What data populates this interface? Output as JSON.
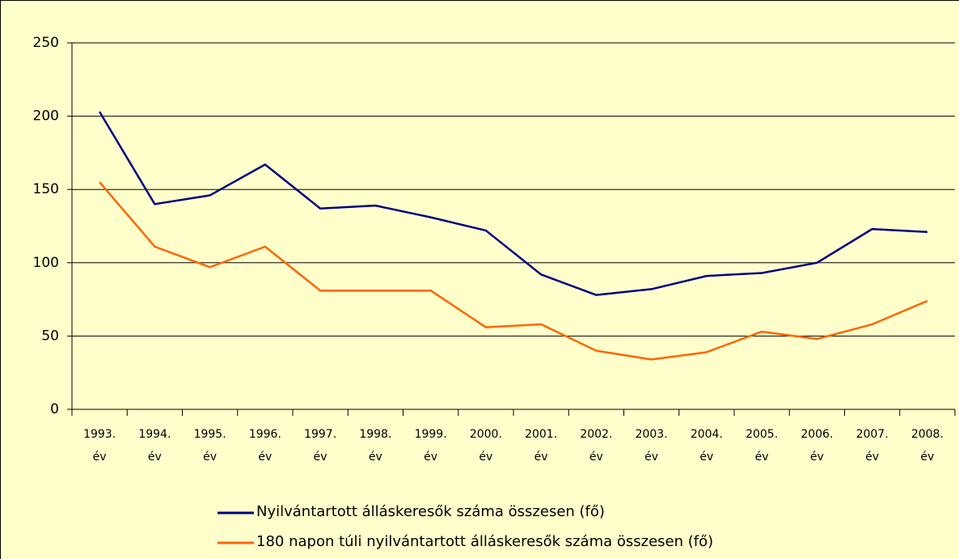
{
  "chart_data": {
    "type": "line",
    "categories": [
      "1993. év",
      "1994. év",
      "1995. év",
      "1996. év",
      "1997. év",
      "1998. év",
      "1999. év",
      "2000. év",
      "2001. év",
      "2002. év",
      "2003. év",
      "2004. év",
      "2005. év",
      "2006. év",
      "2007. év",
      "2008. év"
    ],
    "series": [
      {
        "name": "Nyilvántartott álláskeresők száma összesen (fő)",
        "color": "#000080",
        "values": [
          203,
          140,
          146,
          167,
          137,
          139,
          131,
          122,
          92,
          78,
          82,
          91,
          93,
          100,
          123,
          121
        ]
      },
      {
        "name": "180 napon túli nyilvántartott álláskeresők száma összesen (fő)",
        "color": "#FF6600",
        "values": [
          155,
          111,
          97,
          111,
          81,
          81,
          81,
          56,
          58,
          40,
          34,
          39,
          53,
          48,
          58,
          74
        ]
      }
    ],
    "ylim": [
      0,
      250
    ],
    "yticks": [
      0,
      50,
      100,
      150,
      200,
      250
    ],
    "grid": true
  }
}
